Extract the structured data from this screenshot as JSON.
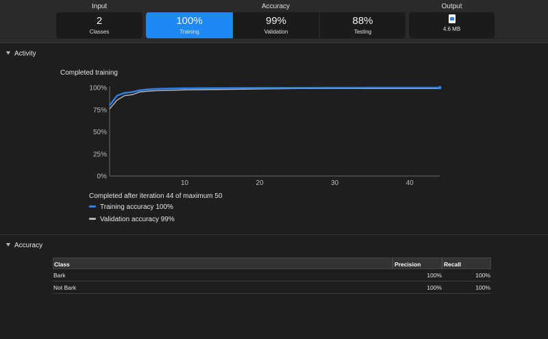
{
  "summary": {
    "input": {
      "title": "Input",
      "value": "2",
      "label": "Classes"
    },
    "accuracy": {
      "title": "Accuracy",
      "training": {
        "value": "100%",
        "label": "Training"
      },
      "validation": {
        "value": "99%",
        "label": "Validation"
      },
      "testing": {
        "value": "88%",
        "label": "Testing"
      }
    },
    "output": {
      "title": "Output",
      "size": "4.6 MB",
      "icon": "model-file-icon"
    }
  },
  "activity": {
    "header": "Activity",
    "chart_title": "Completed training",
    "status": "Completed after iteration 44 of maximum 50",
    "legend": [
      {
        "label": "Training accuracy 100%",
        "color": "#2f7fe6"
      },
      {
        "label": "Validation accuracy 99%",
        "color": "#b5b5b5"
      }
    ]
  },
  "chart_data": {
    "type": "line",
    "title": "Completed training",
    "xlabel": "",
    "ylabel": "",
    "xlim": [
      0,
      44
    ],
    "ylim": [
      0,
      100
    ],
    "x_ticks": [
      10,
      20,
      30,
      40
    ],
    "y_ticks": [
      "0%",
      "25%",
      "50%",
      "75%",
      "100%"
    ],
    "grid": false,
    "series": [
      {
        "name": "Training accuracy",
        "color": "#2f7fe6",
        "x": [
          0,
          1,
          2,
          3,
          4,
          5,
          6,
          8,
          10,
          15,
          20,
          25,
          30,
          35,
          40,
          44
        ],
        "y": [
          80,
          91,
          94,
          95,
          97,
          98,
          98.5,
          99,
          99.3,
          99.5,
          99.7,
          99.8,
          99.9,
          100,
          100,
          100
        ]
      },
      {
        "name": "Validation accuracy",
        "color": "#b5b5b5",
        "x": [
          0,
          1,
          2,
          3,
          4,
          5,
          6,
          8,
          10,
          15,
          20,
          25,
          30,
          35,
          40,
          44
        ],
        "y": [
          76,
          86,
          91,
          92,
          95,
          96,
          96.5,
          97,
          97.5,
          98,
          98.5,
          99,
          99,
          99,
          99,
          99
        ]
      }
    ]
  },
  "accuracy_section": {
    "header": "Accuracy",
    "columns": [
      "Class",
      "Precision",
      "Recall"
    ],
    "rows": [
      {
        "class": "Bark",
        "precision": "100%",
        "recall": "100%"
      },
      {
        "class": "Not Bark",
        "precision": "100%",
        "recall": "100%"
      }
    ]
  }
}
